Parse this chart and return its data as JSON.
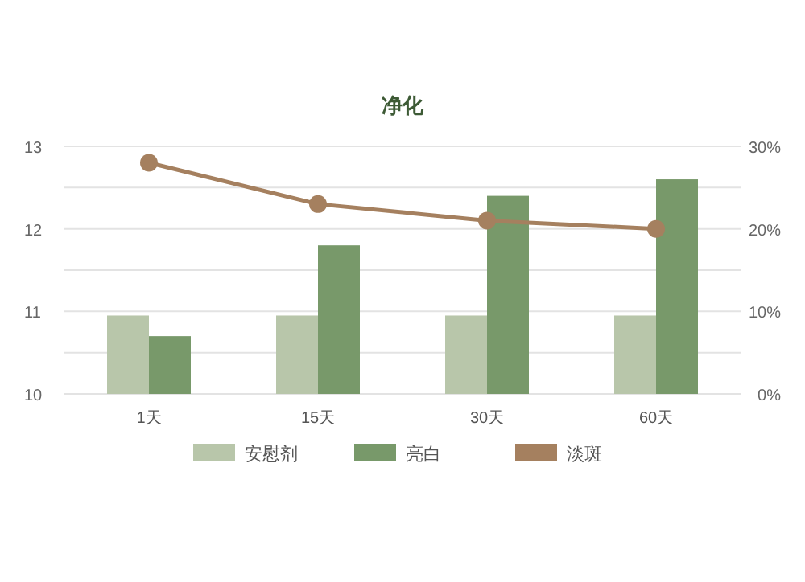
{
  "chart_data": {
    "type": "bar",
    "title": "净化",
    "categories": [
      "1天",
      "15天",
      "30天",
      "60天"
    ],
    "series": [
      {
        "name": "安慰剂",
        "color": "#b8c6aa",
        "values": [
          10.95,
          10.95,
          10.95,
          10.95
        ]
      },
      {
        "name": "亮白",
        "color": "#78996a",
        "values": [
          10.7,
          11.8,
          12.4,
          12.6
        ]
      },
      {
        "name": "淡斑",
        "color": "#a5805f",
        "type": "line",
        "axis": "y2",
        "marker": "circle",
        "values": [
          28,
          23,
          21,
          20
        ]
      }
    ],
    "ylim": [
      10,
      13
    ],
    "yticks": [
      10,
      {
        "value": 10.5,
        "label": null
      },
      11,
      {
        "value": 11.5,
        "label": null
      },
      12,
      {
        "value": 12.5,
        "label": null
      },
      13
    ],
    "y2lim": [
      0,
      30
    ],
    "y2ticks": [
      {
        "value": 0,
        "label": "0%"
      },
      {
        "value": 10,
        "label": "10%"
      },
      {
        "value": 20,
        "label": "20%"
      },
      {
        "value": 30,
        "label": "30%"
      }
    ],
    "grid": "y",
    "legend": "bottom"
  }
}
